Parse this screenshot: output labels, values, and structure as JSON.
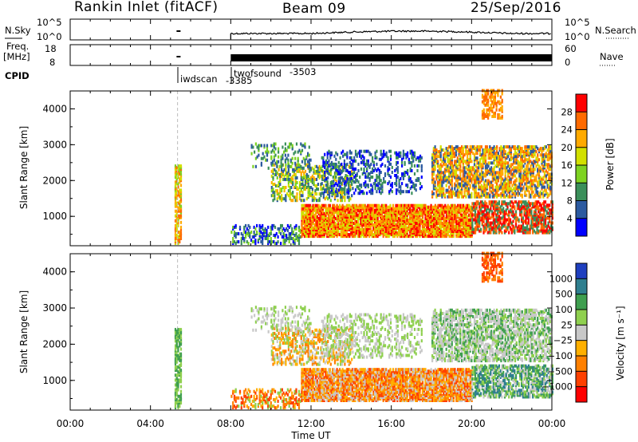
{
  "header": {
    "station": "Rankin Inlet (fitACF)",
    "beam": "Beam 09",
    "date": "25/Sep/2016"
  },
  "top_panels": {
    "nsky_label": "N.Sky",
    "nsky_ticks": [
      "10^5",
      "10^0"
    ],
    "nsearch_label": "N.Search",
    "nsearch_ticks": [
      "10^5",
      "10^0"
    ],
    "freq_label_1": "Freq.",
    "freq_label_2": "[MHz]",
    "freq_ticks": [
      "18",
      "8"
    ],
    "nave_label": "Nave",
    "nave_ticks": [
      "60",
      "0"
    ],
    "cpid_label": "CPID",
    "cpid_entries": [
      {
        "name": "iwdscan",
        "id": "-3385",
        "start": "05:18"
      },
      {
        "name": "twofsound",
        "id": "-3503",
        "start": "08:00"
      }
    ]
  },
  "chart_data": [
    {
      "type": "heatmap",
      "name": "power",
      "ylabel": "Slant Range [km]",
      "yticks": [
        1000,
        2000,
        3000,
        4000
      ],
      "ylim": [
        180,
        4500
      ],
      "colorbar_label": "Power [dB]",
      "colorbar_ticks": [
        "28",
        "24",
        "20",
        "16",
        "12",
        "8",
        "4"
      ],
      "colorbar_colors": [
        "#ff0000",
        "#ff6a00",
        "#ffaa00",
        "#d2e000",
        "#7ed321",
        "#3a8f5a",
        "#2c5aa0",
        "#0000ff"
      ]
    },
    {
      "type": "heatmap",
      "name": "velocity",
      "ylabel": "Slant Range [km]",
      "yticks": [
        1000,
        2000,
        3000,
        4000
      ],
      "ylim": [
        180,
        4500
      ],
      "colorbar_label": "Velocity [m s⁻¹]",
      "colorbar_ticks": [
        "1000",
        "500",
        "100",
        "25",
        "−25",
        "−100",
        "−500",
        "−1000"
      ],
      "colorbar_colors": [
        "#1f3fbf",
        "#2f7f8f",
        "#3f9f4f",
        "#8fd04f",
        "#c8c8c8",
        "#ffb000",
        "#ff8000",
        "#ff4000",
        "#ff0000"
      ]
    }
  ],
  "x_axis": {
    "label": "Time UT",
    "ticks": [
      "00:00",
      "04:00",
      "08:00",
      "12:00",
      "16:00",
      "20:00",
      "00:00"
    ]
  }
}
